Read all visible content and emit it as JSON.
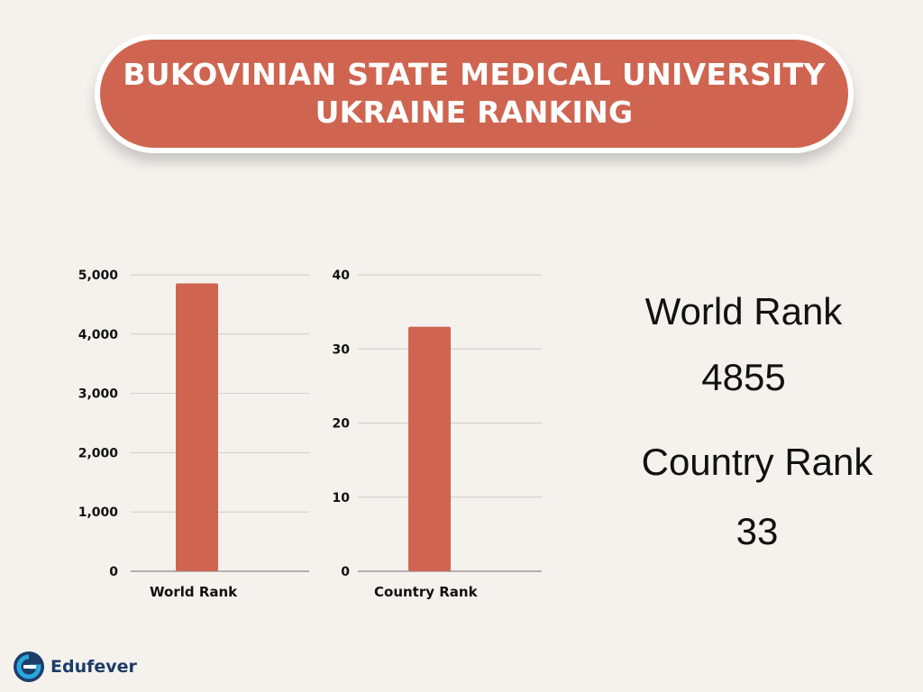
{
  "header": {
    "title_line1": "BUKOVINIAN STATE MEDICAL UNIVERSITY",
    "title_line2": "UKRAINE RANKING"
  },
  "chart_data": [
    {
      "type": "bar",
      "categories": [
        "World Rank"
      ],
      "values": [
        4855
      ],
      "xlabel": "World Rank",
      "ylim": [
        0,
        5000
      ],
      "yticks": [
        0,
        1000,
        2000,
        3000,
        4000,
        5000
      ],
      "ytick_labels": [
        "0",
        "1,000",
        "2,000",
        "3,000",
        "4,000",
        "5,000"
      ],
      "grid": true,
      "color": "#cf6550"
    },
    {
      "type": "bar",
      "categories": [
        "Country Rank"
      ],
      "values": [
        33
      ],
      "xlabel": "Country Rank",
      "ylim": [
        0,
        40
      ],
      "yticks": [
        0,
        10,
        20,
        30,
        40
      ],
      "ytick_labels": [
        "0",
        "10",
        "20",
        "30",
        "40"
      ],
      "grid": true,
      "color": "#cf6550"
    }
  ],
  "summary": {
    "world_rank_label": "World Rank",
    "world_rank_value": "4855",
    "country_rank_label": "Country Rank",
    "country_rank_value": "33"
  },
  "logo": {
    "icon": "edufever-logo-icon",
    "text": "Edufever",
    "colors": {
      "primary": "#1d3c68",
      "accent": "#29a8e0"
    }
  }
}
